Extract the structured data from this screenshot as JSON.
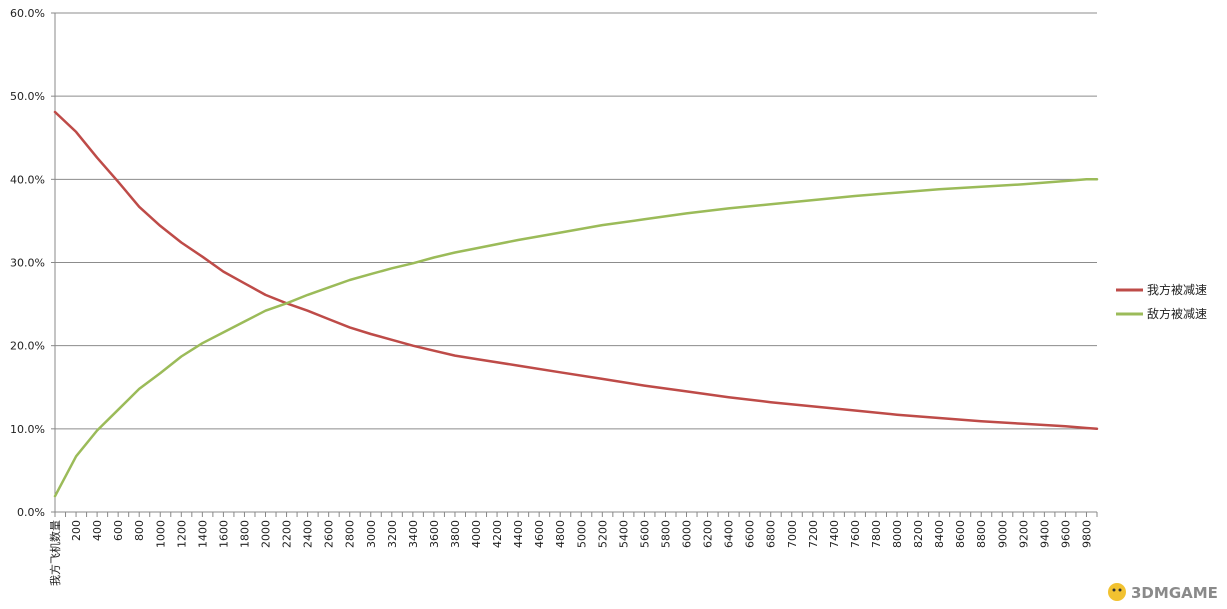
{
  "chart_data": {
    "type": "line",
    "y_ticks": [
      "0.0%",
      "10.0%",
      "20.0%",
      "30.0%",
      "40.0%",
      "50.0%",
      "60.0%"
    ],
    "ylim": [
      0,
      60
    ],
    "x_first_label": "我方飞机数量",
    "x_labels": [
      "200",
      "400",
      "600",
      "800",
      "1000",
      "1200",
      "1400",
      "1600",
      "1800",
      "2000",
      "2200",
      "2400",
      "2600",
      "2800",
      "3000",
      "3200",
      "3400",
      "3600",
      "3800",
      "4000",
      "4200",
      "4400",
      "4600",
      "4800",
      "5000",
      "5200",
      "5400",
      "5600",
      "5800",
      "6000",
      "6200",
      "6400",
      "6600",
      "6800",
      "7000",
      "7200",
      "7400",
      "7600",
      "7800",
      "8000",
      "8200",
      "8400",
      "8600",
      "8800",
      "9000",
      "9200",
      "9400",
      "9600",
      "9800"
    ],
    "grid": true,
    "legend_position": "right",
    "series": [
      {
        "name": "我方被减速",
        "color": "#be4b48",
        "x": [
          0,
          200,
          400,
          600,
          800,
          1000,
          1200,
          1400,
          1600,
          1800,
          2000,
          2200,
          2400,
          2600,
          2800,
          3000,
          3200,
          3400,
          3600,
          3800,
          4000,
          4400,
          4800,
          5200,
          5600,
          6000,
          6400,
          6800,
          7200,
          7600,
          8000,
          8400,
          8800,
          9200,
          9600,
          9800,
          9900
        ],
        "values": [
          48.1,
          45.7,
          42.6,
          39.7,
          36.7,
          34.4,
          32.4,
          30.7,
          28.9,
          27.5,
          26.1,
          25.1,
          24.2,
          23.2,
          22.2,
          21.4,
          20.7,
          20.0,
          19.4,
          18.8,
          18.4,
          17.6,
          16.8,
          16.0,
          15.2,
          14.5,
          13.8,
          13.2,
          12.7,
          12.2,
          11.7,
          11.3,
          10.9,
          10.6,
          10.3,
          10.1,
          10.0
        ]
      },
      {
        "name": "敌方被减速",
        "color": "#9bbb59",
        "x": [
          0,
          200,
          400,
          600,
          800,
          1000,
          1200,
          1400,
          1600,
          1800,
          2000,
          2200,
          2400,
          2600,
          2800,
          3000,
          3200,
          3400,
          3600,
          3800,
          4000,
          4400,
          4800,
          5200,
          5600,
          6000,
          6400,
          6800,
          7200,
          7600,
          8000,
          8400,
          8800,
          9200,
          9600,
          9800,
          9900
        ],
        "values": [
          1.9,
          6.7,
          9.8,
          12.3,
          14.8,
          16.7,
          18.7,
          20.3,
          21.6,
          22.9,
          24.2,
          25.1,
          26.1,
          27.0,
          27.9,
          28.6,
          29.3,
          29.9,
          30.6,
          31.2,
          31.7,
          32.7,
          33.6,
          34.5,
          35.2,
          35.9,
          36.5,
          37.0,
          37.5,
          38.0,
          38.4,
          38.8,
          39.1,
          39.4,
          39.8,
          40.0,
          40.0
        ]
      }
    ]
  },
  "watermark": {
    "text": "3DMGAME"
  }
}
